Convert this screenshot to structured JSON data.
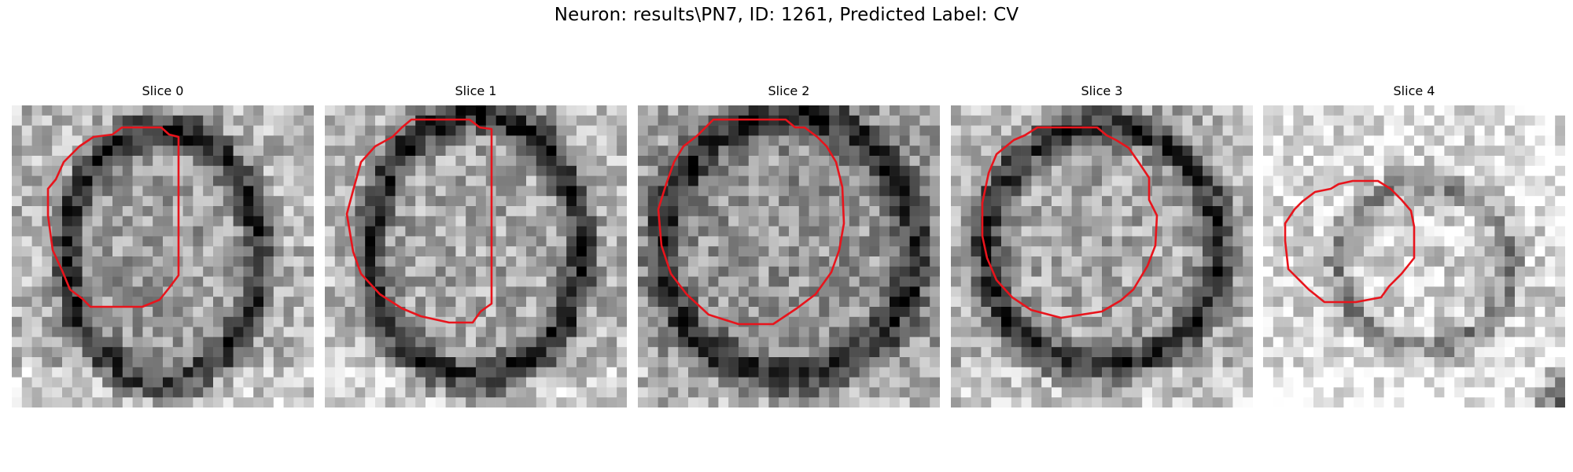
{
  "figure": {
    "title": "Neuron: results\\PN7, ID: 1261, Predicted Label: CV"
  },
  "slices": [
    {
      "title": "Slice 0",
      "slice_index": 0
    },
    {
      "title": "Slice 1",
      "slice_index": 1
    },
    {
      "title": "Slice 2",
      "slice_index": 2
    },
    {
      "title": "Slice 3",
      "slice_index": 3
    },
    {
      "title": "Slice 4",
      "slice_index": 4
    }
  ],
  "contour": {
    "color": "#e8141c"
  }
}
